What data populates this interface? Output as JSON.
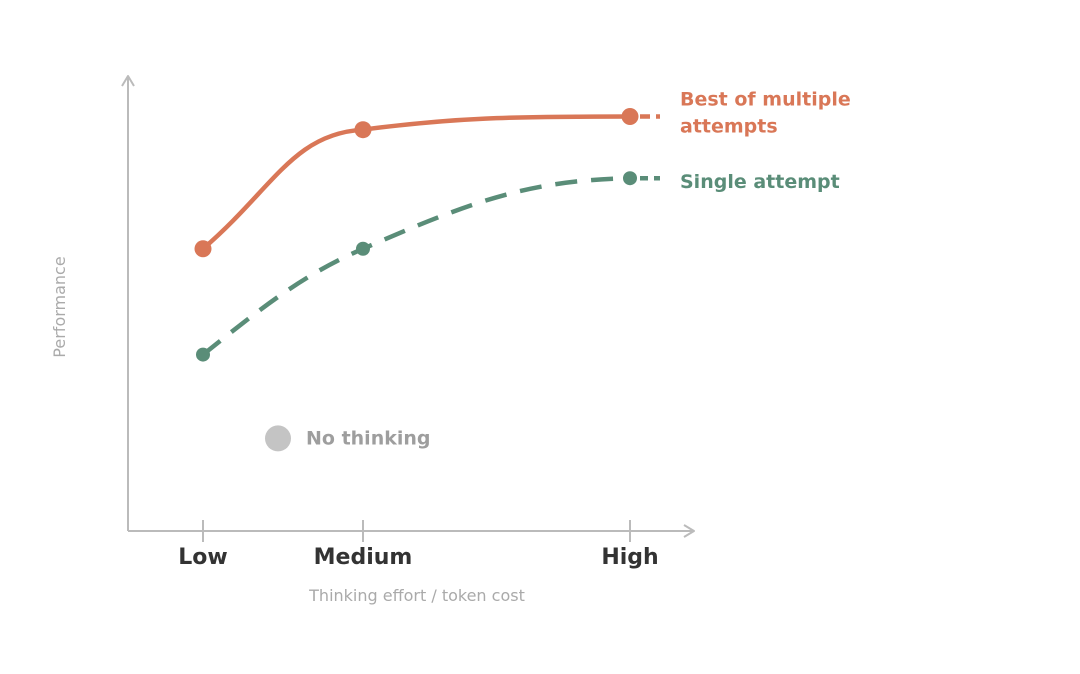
{
  "chart_data": {
    "type": "line",
    "title": "",
    "xlabel": "Thinking effort / token cost",
    "ylabel": "Performance",
    "categories": [
      "Low",
      "Medium",
      "High"
    ],
    "ylim": [
      0,
      100
    ],
    "grid": false,
    "series": [
      {
        "name": "Best of multiple attempts",
        "label_lines": [
          "Best of multiple",
          "attempts"
        ],
        "values": [
          64,
          91,
          94
        ],
        "color": "#d97757",
        "style": "solid, dashed beyond High"
      },
      {
        "name": "Single attempt",
        "label_lines": [
          "Single attempt"
        ],
        "values": [
          40,
          64,
          80
        ],
        "color": "#5a8d78",
        "style": "dashed"
      }
    ],
    "annotations": [
      {
        "text": "No thinking",
        "x_position": "between Low and Medium",
        "value": 21,
        "color": "#c4c4c4"
      }
    ],
    "axis_color": "#bbbbbb"
  }
}
